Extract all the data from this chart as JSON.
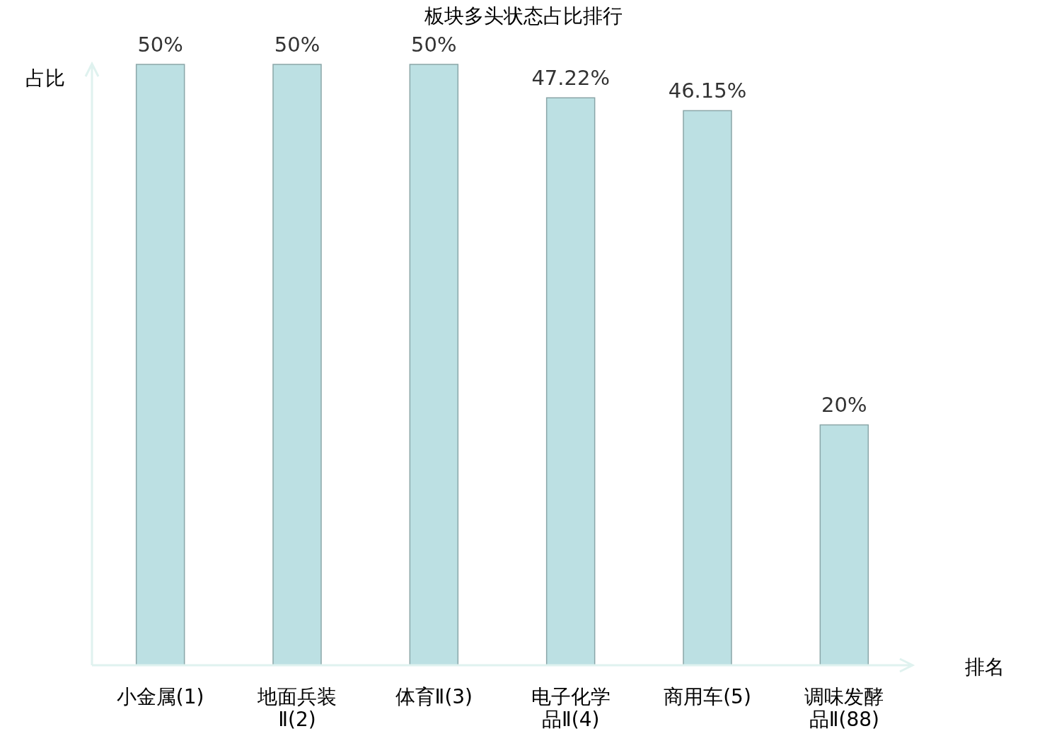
{
  "chart_data": {
    "type": "bar",
    "title": "板块多头状态占比排行",
    "xlabel": "排名",
    "ylabel": "占比",
    "categories": [
      "小金属(1)",
      "地面兵装Ⅱ(2)",
      "体育Ⅱ(3)",
      "电子化学品Ⅱ(4)",
      "商用车(5)",
      "调味发酵品Ⅱ(88)"
    ],
    "values": [
      50,
      50,
      50,
      47.22,
      46.15,
      20
    ],
    "value_labels": [
      "50%",
      "50%",
      "50%",
      "47.22%",
      "46.15%",
      "20%"
    ],
    "color": "#bce0e3"
  }
}
